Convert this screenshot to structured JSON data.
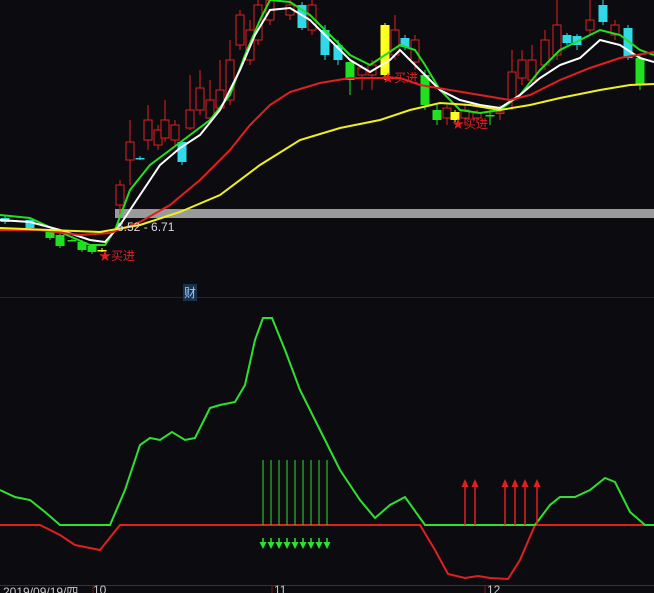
{
  "chart_data": [
    {
      "type": "candlestick",
      "price_scale": [
        6.4,
        9.0
      ],
      "range_label": "6.52 - 6.71",
      "marker_label": "财",
      "signal_label": "★买进",
      "signals": [
        [
          10.2,
          6.45
        ],
        [
          38.5,
          8.23
        ],
        [
          45.5,
          7.77
        ]
      ],
      "band": {
        "from_bar": 11.5,
        "low": 6.82,
        "high": 6.91,
        "color": "#9a9a9a"
      },
      "colors": {
        "up": "#e02020",
        "down": "#30d8e8",
        "green": "#20e020",
        "yellow": "#ffff20"
      },
      "candles": [
        [
          0.5,
          6.82,
          6.78,
          6.84,
          6.76,
          "down"
        ],
        [
          3,
          6.8,
          6.72,
          6.83,
          6.7,
          "down"
        ],
        [
          5,
          6.68,
          6.62,
          6.7,
          6.6,
          "green"
        ],
        [
          6,
          6.65,
          6.54,
          6.67,
          6.52,
          "green"
        ],
        [
          7.2,
          6.6,
          6.6,
          6.61,
          6.59,
          "green"
        ],
        [
          8.2,
          6.58,
          6.5,
          6.6,
          6.48,
          "green"
        ],
        [
          9.2,
          6.54,
          6.48,
          6.56,
          6.46,
          "green"
        ],
        [
          10.2,
          6.5,
          6.5,
          6.52,
          6.48,
          "yellow"
        ],
        [
          12,
          6.95,
          7.15,
          7.2,
          6.85,
          "up"
        ],
        [
          13,
          7.4,
          7.58,
          7.8,
          7.15,
          "up"
        ],
        [
          14,
          7.42,
          7.42,
          7.44,
          7.4,
          "down"
        ],
        [
          14.8,
          7.6,
          7.8,
          7.95,
          7.5,
          "up"
        ],
        [
          15.8,
          7.55,
          7.7,
          7.75,
          7.5,
          "up"
        ],
        [
          16.5,
          7.62,
          7.8,
          8.0,
          7.58,
          "up"
        ],
        [
          17.5,
          7.6,
          7.75,
          7.8,
          7.55,
          "up"
        ],
        [
          18.2,
          7.58,
          7.38,
          7.6,
          7.35,
          "down"
        ],
        [
          19,
          7.72,
          7.9,
          8.25,
          7.7,
          "up"
        ],
        [
          20,
          7.9,
          8.12,
          8.3,
          7.85,
          "up"
        ],
        [
          21,
          7.82,
          8.0,
          8.2,
          7.8,
          "up"
        ],
        [
          22,
          7.92,
          8.1,
          8.4,
          7.9,
          "up"
        ],
        [
          23,
          8.0,
          8.4,
          8.6,
          7.95,
          "up"
        ],
        [
          24,
          8.55,
          8.85,
          8.9,
          8.5,
          "up"
        ],
        [
          25,
          8.4,
          8.7,
          8.8,
          8.35,
          "up"
        ],
        [
          25.8,
          8.6,
          8.95,
          9.0,
          8.55,
          "up"
        ],
        [
          27,
          8.8,
          9.0,
          9.0,
          8.75,
          "up"
        ],
        [
          29,
          8.85,
          8.95,
          9.0,
          8.8,
          "up"
        ],
        [
          30.2,
          8.95,
          8.72,
          8.98,
          8.7,
          "down"
        ],
        [
          31.2,
          8.7,
          8.95,
          9.0,
          8.65,
          "up"
        ],
        [
          32.5,
          8.7,
          8.45,
          8.75,
          8.4,
          "down"
        ],
        [
          33.8,
          8.55,
          8.4,
          8.6,
          8.35,
          "down"
        ],
        [
          35,
          8.38,
          8.2,
          8.4,
          8.05,
          "green"
        ],
        [
          36.2,
          8.25,
          8.32,
          8.35,
          8.1,
          "up"
        ],
        [
          37.2,
          8.25,
          8.35,
          8.4,
          8.1,
          "up"
        ],
        [
          38.5,
          8.75,
          8.25,
          8.77,
          8.2,
          "yellow"
        ],
        [
          39.5,
          8.45,
          8.7,
          8.85,
          8.4,
          "up"
        ],
        [
          40.5,
          8.62,
          8.53,
          8.65,
          8.5,
          "down"
        ],
        [
          41.5,
          8.38,
          8.6,
          8.65,
          8.3,
          "up"
        ],
        [
          42.5,
          8.25,
          7.95,
          8.3,
          7.9,
          "green"
        ],
        [
          43.7,
          7.9,
          7.8,
          7.95,
          7.75,
          "green"
        ],
        [
          44.7,
          7.82,
          7.92,
          7.95,
          7.75,
          "up"
        ],
        [
          45.5,
          7.88,
          7.8,
          7.9,
          7.78,
          "yellow"
        ],
        [
          46.5,
          7.82,
          7.9,
          7.95,
          7.75,
          "up"
        ],
        [
          47.7,
          7.82,
          7.87,
          7.9,
          7.78,
          "up"
        ],
        [
          49,
          7.85,
          7.85,
          7.9,
          7.75,
          "green"
        ],
        [
          50,
          7.88,
          7.88,
          7.95,
          7.8,
          "up"
        ],
        [
          51.2,
          8.0,
          8.28,
          8.5,
          7.9,
          "up"
        ],
        [
          52.2,
          8.22,
          8.4,
          8.5,
          8.15,
          "up"
        ],
        [
          53.2,
          8.2,
          8.4,
          8.55,
          8.15,
          "up"
        ],
        [
          54.5,
          8.35,
          8.6,
          8.7,
          8.3,
          "up"
        ],
        [
          55.7,
          8.45,
          8.75,
          9.0,
          8.4,
          "up"
        ],
        [
          56.7,
          8.65,
          8.57,
          8.67,
          8.55,
          "down"
        ],
        [
          57.7,
          8.64,
          8.55,
          8.66,
          8.5,
          "down"
        ],
        [
          59,
          8.7,
          8.8,
          9.0,
          8.65,
          "up"
        ],
        [
          60.3,
          8.95,
          8.78,
          9.0,
          8.75,
          "down"
        ],
        [
          61.5,
          8.65,
          8.75,
          8.8,
          8.6,
          "up"
        ],
        [
          62.8,
          8.72,
          8.42,
          8.75,
          8.4,
          "down"
        ],
        [
          64,
          8.42,
          8.15,
          8.45,
          8.1,
          "green"
        ]
      ],
      "lines": [
        {
          "color": "#20e020",
          "points": [
            [
              0,
              6.85
            ],
            [
              3,
              6.82
            ],
            [
              6,
              6.68
            ],
            [
              9,
              6.55
            ],
            [
              10.5,
              6.55
            ],
            [
              11.5,
              6.7
            ],
            [
              13,
              7.1
            ],
            [
              15,
              7.35
            ],
            [
              17,
              7.5
            ],
            [
              19,
              7.65
            ],
            [
              21,
              7.8
            ],
            [
              23,
              8.05
            ],
            [
              24.5,
              8.45
            ],
            [
              26,
              8.8
            ],
            [
              27,
              9.0
            ],
            [
              29,
              8.98
            ],
            [
              31,
              8.85
            ],
            [
              33,
              8.65
            ],
            [
              35,
              8.45
            ],
            [
              37,
              8.35
            ],
            [
              38.5,
              8.45
            ],
            [
              40,
              8.55
            ],
            [
              41.5,
              8.5
            ],
            [
              42.5,
              8.35
            ],
            [
              44,
              8.1
            ],
            [
              46,
              7.9
            ],
            [
              48,
              7.87
            ],
            [
              50,
              7.9
            ],
            [
              52,
              8.05
            ],
            [
              54,
              8.3
            ],
            [
              56,
              8.5
            ],
            [
              58,
              8.6
            ],
            [
              60,
              8.7
            ],
            [
              62,
              8.65
            ],
            [
              64,
              8.5
            ],
            [
              65.4,
              8.45
            ]
          ]
        },
        {
          "color": "#ffffff",
          "points": [
            [
              0,
              6.8
            ],
            [
              3,
              6.78
            ],
            [
              6,
              6.7
            ],
            [
              9,
              6.6
            ],
            [
              10.5,
              6.58
            ],
            [
              12,
              6.75
            ],
            [
              14,
              7.05
            ],
            [
              16,
              7.35
            ],
            [
              18,
              7.52
            ],
            [
              20,
              7.65
            ],
            [
              22,
              7.9
            ],
            [
              24,
              8.3
            ],
            [
              25.5,
              8.65
            ],
            [
              27,
              8.9
            ],
            [
              29,
              8.92
            ],
            [
              31,
              8.8
            ],
            [
              33,
              8.6
            ],
            [
              35,
              8.4
            ],
            [
              37,
              8.28
            ],
            [
              39,
              8.4
            ],
            [
              40,
              8.5
            ],
            [
              42,
              8.3
            ],
            [
              44,
              8.1
            ],
            [
              46,
              8.0
            ],
            [
              48,
              7.95
            ],
            [
              50,
              7.92
            ],
            [
              52,
              8.05
            ],
            [
              54,
              8.22
            ],
            [
              56,
              8.35
            ],
            [
              58,
              8.42
            ],
            [
              60,
              8.6
            ],
            [
              62,
              8.55
            ],
            [
              64,
              8.42
            ],
            [
              65.4,
              8.38
            ]
          ]
        },
        {
          "color": "#e02020",
          "points": [
            [
              0,
              6.7
            ],
            [
              4,
              6.7
            ],
            [
              8,
              6.65
            ],
            [
              11,
              6.67
            ],
            [
              14,
              6.78
            ],
            [
              17,
              6.95
            ],
            [
              20,
              7.2
            ],
            [
              23,
              7.5
            ],
            [
              25,
              7.75
            ],
            [
              27,
              7.95
            ],
            [
              29,
              8.08
            ],
            [
              32,
              8.17
            ],
            [
              35,
              8.22
            ],
            [
              38,
              8.22
            ],
            [
              40,
              8.22
            ],
            [
              42,
              8.15
            ],
            [
              45,
              8.1
            ],
            [
              48,
              8.05
            ],
            [
              51,
              8.0
            ],
            [
              53,
              8.05
            ],
            [
              56,
              8.2
            ],
            [
              59,
              8.32
            ],
            [
              62,
              8.42
            ],
            [
              65.4,
              8.48
            ]
          ]
        },
        {
          "color": "#f0f020",
          "points": [
            [
              0,
              6.72
            ],
            [
              5,
              6.7
            ],
            [
              10,
              6.68
            ],
            [
              14,
              6.75
            ],
            [
              18,
              6.88
            ],
            [
              22,
              7.05
            ],
            [
              26,
              7.35
            ],
            [
              30,
              7.6
            ],
            [
              34,
              7.72
            ],
            [
              38,
              7.8
            ],
            [
              41,
              7.9
            ],
            [
              44,
              7.97
            ],
            [
              47,
              7.95
            ],
            [
              50,
              7.9
            ],
            [
              53,
              7.95
            ],
            [
              56,
              8.02
            ],
            [
              60,
              8.1
            ],
            [
              63,
              8.15
            ],
            [
              65.4,
              8.16
            ]
          ]
        }
      ]
    },
    {
      "type": "line",
      "ylim": [
        -30,
        110
      ],
      "series": [
        {
          "color": "#30e030",
          "points": [
            [
              0,
              17.5
            ],
            [
              1.5,
              14
            ],
            [
              3,
              12.5
            ],
            [
              4.5,
              6.5
            ],
            [
              6,
              0
            ],
            [
              11,
              0
            ],
            [
              12.5,
              17.5
            ],
            [
              14,
              40
            ],
            [
              15,
              43.5
            ],
            [
              16,
              42.5
            ],
            [
              17.2,
              46.5
            ],
            [
              18.5,
              42.5
            ],
            [
              19.5,
              43.5
            ],
            [
              21,
              58.5
            ],
            [
              22,
              60
            ],
            [
              23.5,
              61.5
            ],
            [
              24.5,
              70
            ],
            [
              25.5,
              92.5
            ],
            [
              26.3,
              103.5
            ],
            [
              27.2,
              103.5
            ],
            [
              28.5,
              87.5
            ],
            [
              30,
              67.5
            ],
            [
              32,
              47.5
            ],
            [
              34,
              27.5
            ],
            [
              36,
              12.5
            ],
            [
              37.5,
              3.5
            ],
            [
              39,
              10
            ],
            [
              40.5,
              14
            ],
            [
              42.5,
              0
            ],
            [
              53.5,
              0
            ],
            [
              55,
              10
            ],
            [
              56,
              14
            ],
            [
              57.5,
              14
            ],
            [
              59,
              17.5
            ],
            [
              60.5,
              23.5
            ],
            [
              61.5,
              21.5
            ],
            [
              63,
              6.5
            ],
            [
              64.5,
              0
            ],
            [
              65.4,
              0
            ]
          ]
        },
        {
          "color": "#e02020",
          "points": [
            [
              0,
              0
            ],
            [
              4,
              0
            ],
            [
              6,
              -5
            ],
            [
              7.5,
              -10
            ],
            [
              10,
              -12.5
            ],
            [
              12,
              0
            ],
            [
              42,
              0
            ],
            [
              43.5,
              -12.5
            ],
            [
              44.8,
              -24.5
            ],
            [
              46.5,
              -26.5
            ],
            [
              47.8,
              -25.5
            ],
            [
              49,
              -26.5
            ],
            [
              50.8,
              -27
            ],
            [
              52,
              -17.5
            ],
            [
              53.5,
              0
            ],
            [
              65.4,
              0
            ]
          ]
        }
      ],
      "sell_arrows": [
        26.3,
        27.1,
        27.9,
        28.7,
        29.5,
        30.3,
        31.1,
        31.9,
        32.7
      ],
      "buy_arrows": [
        46.5,
        47.5,
        50.5,
        51.5,
        52.5,
        53.7
      ]
    }
  ],
  "x_axis": {
    "start_label": "2019/09/19/四",
    "ticks": [
      {
        "bar": 9.5,
        "label": "10"
      },
      {
        "bar": 27.4,
        "label": "11"
      },
      {
        "bar": 48.7,
        "label": "12"
      }
    ]
  }
}
